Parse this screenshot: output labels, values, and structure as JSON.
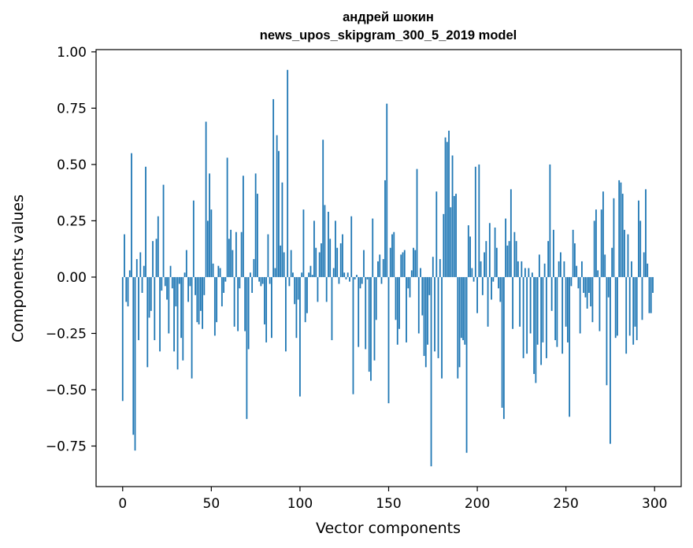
{
  "chart_data": {
    "type": "bar",
    "title": "андрей шокин",
    "subtitle": "news_upos_skipgram_300_5_2019 model",
    "xlabel": "Vector components",
    "ylabel": "Components values",
    "xlim": [
      -15,
      315
    ],
    "ylim": [
      -0.93,
      1.01
    ],
    "xticks": [
      0,
      50,
      100,
      150,
      200,
      250,
      300
    ],
    "xtick_labels": [
      "0",
      "50",
      "100",
      "150",
      "200",
      "250",
      "300"
    ],
    "yticks": [
      -0.75,
      -0.5,
      -0.25,
      0.0,
      0.25,
      0.5,
      0.75,
      1.0
    ],
    "ytick_labels": [
      "−0.75",
      "−0.50",
      "−0.25",
      "0.00",
      "0.25",
      "0.50",
      "0.75",
      "1.00"
    ],
    "grid": false,
    "bar_color": "#1f77b4",
    "x": "indices 0..299",
    "values": [
      -0.55,
      0.19,
      -0.11,
      -0.13,
      0.03,
      0.55,
      -0.7,
      -0.77,
      0.08,
      -0.28,
      0.11,
      -0.07,
      0.05,
      0.49,
      -0.4,
      -0.18,
      -0.15,
      0.16,
      -0.28,
      0.17,
      0.27,
      -0.33,
      -0.06,
      0.41,
      -0.04,
      -0.1,
      -0.25,
      0.05,
      -0.05,
      -0.33,
      -0.13,
      -0.41,
      -0.03,
      -0.27,
      -0.37,
      0.02,
      0.12,
      -0.11,
      -0.04,
      -0.45,
      0.34,
      -0.08,
      -0.2,
      -0.21,
      -0.15,
      -0.23,
      -0.08,
      0.69,
      0.25,
      0.46,
      0.3,
      0.06,
      -0.26,
      -0.2,
      0.05,
      0.04,
      -0.13,
      -0.07,
      -0.02,
      0.53,
      0.17,
      0.21,
      0.12,
      -0.22,
      0.2,
      -0.24,
      -0.05,
      0.2,
      0.45,
      -0.24,
      -0.63,
      -0.32,
      0.02,
      -0.07,
      0.08,
      0.46,
      0.37,
      -0.02,
      -0.04,
      -0.03,
      -0.21,
      -0.29,
      0.19,
      -0.03,
      -0.27,
      0.79,
      0.04,
      0.63,
      0.56,
      0.14,
      0.42,
      0.11,
      -0.33,
      0.92,
      -0.04,
      0.12,
      0.02,
      -0.12,
      -0.27,
      -0.1,
      -0.53,
      0.02,
      0.3,
      -0.2,
      -0.16,
      0.02,
      0.05,
      0.01,
      0.25,
      0.13,
      -0.11,
      0.11,
      0.15,
      0.61,
      0.32,
      -0.11,
      0.29,
      0.17,
      -0.28,
      0.04,
      0.25,
      0.13,
      -0.03,
      0.15,
      0.19,
      0.02,
      -0.01,
      0.02,
      -0.02,
      0.27,
      -0.52,
      -0.01,
      0.01,
      -0.31,
      -0.05,
      -0.03,
      0.12,
      -0.32,
      -0.01,
      -0.42,
      -0.46,
      0.26,
      -0.37,
      -0.19,
      0.07,
      0.1,
      -0.03,
      0.08,
      0.43,
      0.77,
      -0.56,
      0.13,
      0.19,
      0.2,
      -0.19,
      -0.3,
      -0.23,
      0.1,
      0.11,
      0.12,
      -0.29,
      -0.05,
      -0.09,
      0.03,
      0.13,
      0.12,
      0.48,
      -0.25,
      0.04,
      -0.17,
      -0.35,
      -0.4,
      -0.3,
      -0.08,
      -0.84,
      0.09,
      -0.33,
      0.38,
      -0.36,
      0.08,
      -0.45,
      0.28,
      0.62,
      0.6,
      0.65,
      0.31,
      0.54,
      0.36,
      0.37,
      -0.45,
      -0.4,
      -0.27,
      -0.28,
      -0.3,
      -0.78,
      0.23,
      0.18,
      0.04,
      -0.02,
      0.49,
      -0.16,
      0.5,
      0.07,
      -0.08,
      0.11,
      0.16,
      -0.22,
      0.24,
      -0.1,
      -0.02,
      0.22,
      0.13,
      -0.05,
      -0.11,
      -0.58,
      -0.63,
      0.26,
      0.14,
      0.16,
      0.39,
      -0.23,
      0.2,
      0.16,
      0.07,
      -0.22,
      0.07,
      -0.36,
      0.04,
      -0.34,
      0.04,
      -0.25,
      0.02,
      -0.43,
      -0.47,
      -0.3,
      0.1,
      -0.39,
      -0.29,
      0.06,
      -0.36,
      0.16,
      0.5,
      -0.15,
      0.21,
      -0.28,
      -0.31,
      0.07,
      0.11,
      -0.34,
      0.07,
      -0.22,
      -0.29,
      -0.62,
      -0.04,
      0.21,
      0.15,
      0.05,
      -0.05,
      -0.25,
      0.07,
      -0.07,
      -0.09,
      -0.14,
      -0.07,
      -0.13,
      -0.2,
      0.25,
      0.3,
      0.03,
      -0.24,
      0.3,
      0.38,
      0.1,
      -0.48,
      -0.09,
      -0.74,
      0.13,
      0.35,
      -0.27,
      -0.26,
      0.43,
      0.42,
      0.37,
      0.21,
      -0.34,
      0.19,
      -0.26,
      0.07,
      -0.3,
      -0.22,
      -0.28,
      0.34,
      0.25,
      -0.19,
      0.11,
      0.39,
      0.06,
      -0.16,
      -0.16,
      -0.07
    ]
  }
}
